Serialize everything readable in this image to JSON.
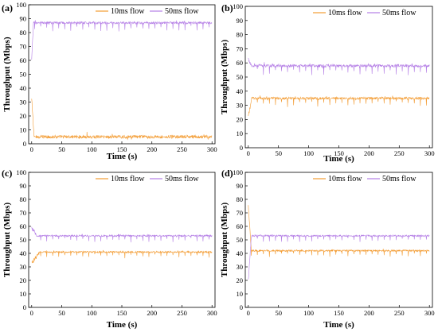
{
  "chart_data": [
    {
      "panel_label": "(a)",
      "type": "line",
      "xlabel": "Time (s)",
      "ylabel": "Throughput (Mbps)",
      "xlim": [
        -5,
        305
      ],
      "ylim": [
        0,
        100
      ],
      "xticks": [
        0,
        50,
        100,
        150,
        200,
        250,
        300
      ],
      "yticks": [
        0,
        10,
        20,
        30,
        40,
        50,
        60,
        70,
        80,
        90,
        100
      ],
      "legend_position": "top-right",
      "series": [
        {
          "name": "10ms flow",
          "color": "#f39c33",
          "start": 32,
          "settle_time": 4,
          "mean": 5,
          "noise": 1.2,
          "dips": 0
        },
        {
          "name": "50ms flow",
          "color": "#b57fe6",
          "start": 60,
          "settle_time": 3,
          "mean": 87,
          "noise": 0.8,
          "dips": -5
        }
      ]
    },
    {
      "panel_label": "(b)",
      "type": "line",
      "xlabel": "Time (s)",
      "ylabel": "Throughput (Mbps)",
      "xlim": [
        -5,
        305
      ],
      "ylim": [
        0,
        100
      ],
      "xticks": [
        0,
        50,
        100,
        150,
        200,
        250,
        300
      ],
      "yticks": [
        0,
        10,
        20,
        30,
        40,
        50,
        60,
        70,
        80,
        90,
        100
      ],
      "legend_position": "top-right",
      "series": [
        {
          "name": "10ms flow",
          "color": "#f39c33",
          "start": 22,
          "settle_time": 6,
          "mean": 35,
          "noise": 0.8,
          "dips": -5
        },
        {
          "name": "50ms flow",
          "color": "#b57fe6",
          "start": 63,
          "settle_time": 6,
          "mean": 58,
          "noise": 1.0,
          "dips": -6
        }
      ]
    },
    {
      "panel_label": "(c)",
      "type": "line",
      "xlabel": "Time (s)",
      "ylabel": "Throughput (Mbps)",
      "xlim": [
        -5,
        305
      ],
      "ylim": [
        0,
        100
      ],
      "xticks": [
        0,
        50,
        100,
        150,
        200,
        250,
        300
      ],
      "yticks": [
        0,
        10,
        20,
        30,
        40,
        50,
        60,
        70,
        80,
        90,
        100
      ],
      "legend_position": "top-right",
      "series": [
        {
          "name": "10ms flow",
          "color": "#f39c33",
          "start": 33,
          "settle_time": 14,
          "mean": 41,
          "noise": 0.6,
          "dips": -4
        },
        {
          "name": "50ms flow",
          "color": "#b57fe6",
          "start": 59,
          "settle_time": 8,
          "mean": 53,
          "noise": 0.6,
          "dips": -4
        }
      ]
    },
    {
      "panel_label": "(d)",
      "type": "line",
      "xlabel": "Time (s)",
      "ylabel": "Throughput (Mbps)",
      "xlim": [
        -5,
        305
      ],
      "ylim": [
        0,
        100
      ],
      "xticks": [
        0,
        50,
        100,
        150,
        200,
        250,
        300
      ],
      "yticks": [
        0,
        10,
        20,
        30,
        40,
        50,
        60,
        70,
        80,
        90,
        100
      ],
      "legend_position": "top-right",
      "series": [
        {
          "name": "10ms flow",
          "color": "#f39c33",
          "start": 75,
          "settle_time": 5,
          "mean": 42,
          "noise": 0.6,
          "dips": -4
        },
        {
          "name": "50ms flow",
          "color": "#b57fe6",
          "start": 20,
          "settle_time": 5,
          "mean": 53,
          "noise": 0.6,
          "dips": -4
        }
      ]
    }
  ]
}
